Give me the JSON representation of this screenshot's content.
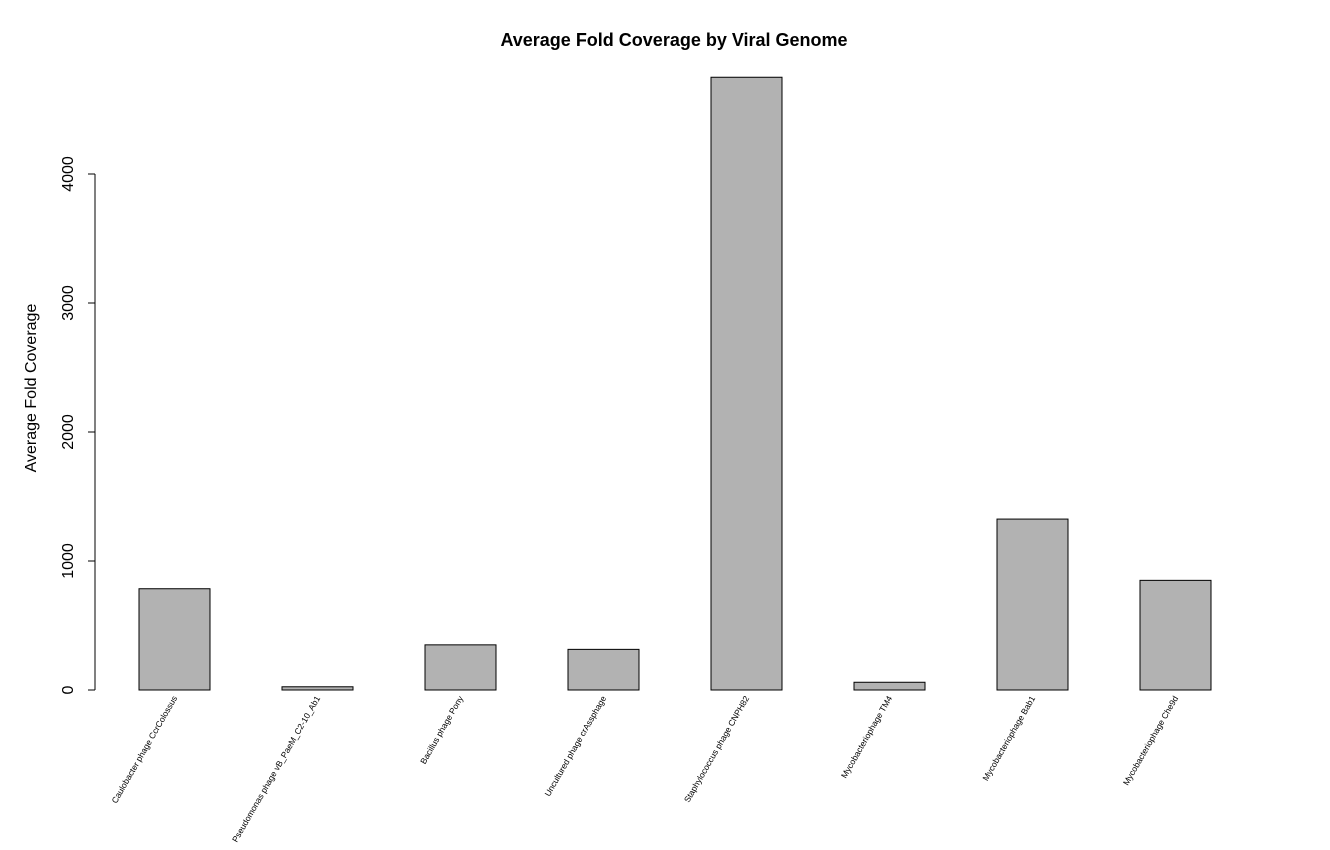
{
  "chart_data": {
    "type": "bar",
    "title": "Average Fold Coverage by Viral Genome",
    "xlabel": "",
    "ylabel": "Average Fold Coverage",
    "ylim": [
      0,
      4750
    ],
    "yticks": [
      0,
      1000,
      2000,
      3000,
      4000
    ],
    "categories": [
      "Caulobacter phage CcrColossus",
      "Pseudomonas phage vB_PaeM_C2-10_Ab1",
      "Bacillus phage Pony",
      "Uncultured phage crAssphage",
      "Staphylococcus phage CNPH82",
      "Mycobacteriophage TM4",
      "Mycobacteriophage Bab1",
      "Mycobacteriophage Che9d"
    ],
    "values": [
      785,
      25,
      350,
      315,
      4750,
      60,
      1325,
      850
    ],
    "colors": {
      "bar_fill": "#b2b2b2",
      "bar_stroke": "#000000"
    },
    "grid": false,
    "legend": "none"
  }
}
